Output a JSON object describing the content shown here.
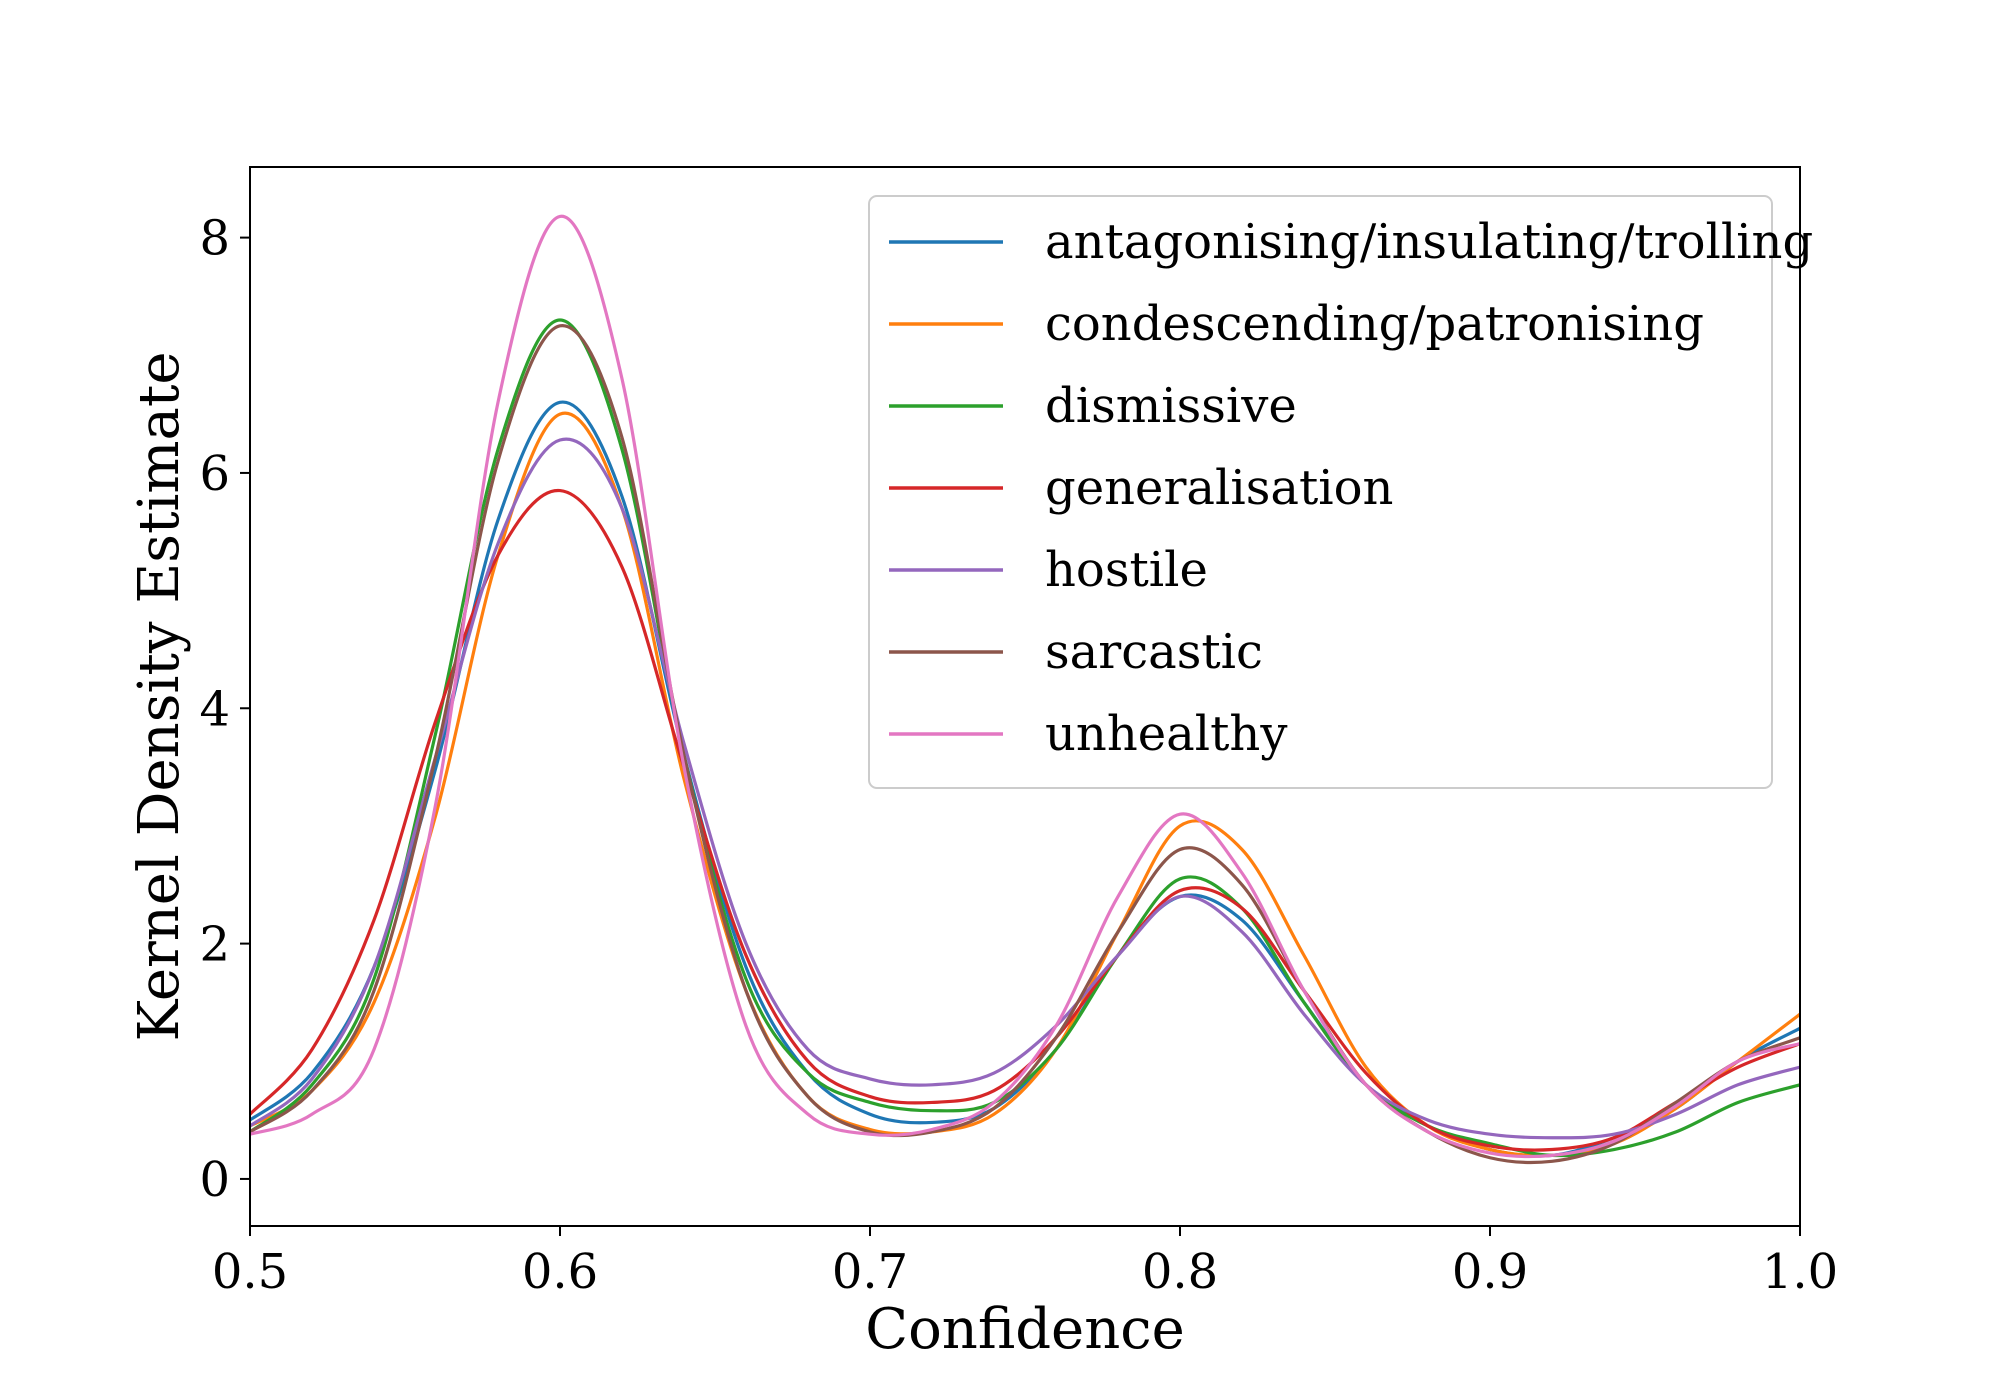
{
  "chart_data": {
    "type": "line",
    "title": "",
    "xlabel": "Confidence",
    "ylabel": "Kernel Density Estimate",
    "xlim": [
      0.5,
      1.0
    ],
    "ylim": [
      -0.4,
      8.6
    ],
    "xticks": [
      0.5,
      0.6,
      0.7,
      0.8,
      0.9,
      1.0
    ],
    "xtick_labels": [
      "0.5",
      "0.6",
      "0.7",
      "0.8",
      "0.9",
      "1.0"
    ],
    "yticks": [
      0,
      2,
      4,
      6,
      8
    ],
    "ytick_labels": [
      "0",
      "2",
      "4",
      "6",
      "8"
    ],
    "grid": false,
    "legend_position": "top-right",
    "x": [
      0.5,
      0.52,
      0.54,
      0.56,
      0.58,
      0.6,
      0.62,
      0.64,
      0.66,
      0.68,
      0.7,
      0.72,
      0.74,
      0.76,
      0.78,
      0.8,
      0.82,
      0.84,
      0.86,
      0.88,
      0.9,
      0.92,
      0.94,
      0.96,
      0.98,
      1.0
    ],
    "series": [
      {
        "name": "antagonising/insulating/trolling",
        "color": "#1f77b4",
        "values": [
          0.5,
          0.9,
          1.8,
          3.5,
          5.6,
          6.6,
          5.8,
          3.6,
          1.8,
          0.9,
          0.55,
          0.48,
          0.6,
          1.1,
          1.9,
          2.4,
          2.2,
          1.5,
          0.8,
          0.45,
          0.25,
          0.2,
          0.35,
          0.6,
          1.0,
          1.28
        ]
      },
      {
        "name": "condescending/patronising",
        "color": "#ff7f0e",
        "values": [
          0.45,
          0.75,
          1.5,
          3.1,
          5.3,
          6.5,
          5.7,
          3.4,
          1.6,
          0.7,
          0.42,
          0.4,
          0.55,
          1.1,
          2.1,
          3.0,
          2.8,
          1.9,
          0.95,
          0.45,
          0.25,
          0.2,
          0.3,
          0.6,
          1.0,
          1.4
        ]
      },
      {
        "name": "dismissive",
        "color": "#2ca02c",
        "values": [
          0.4,
          0.8,
          1.7,
          3.8,
          6.2,
          7.3,
          6.2,
          3.6,
          1.7,
          0.9,
          0.65,
          0.58,
          0.65,
          1.1,
          1.9,
          2.55,
          2.3,
          1.5,
          0.8,
          0.45,
          0.3,
          0.2,
          0.25,
          0.4,
          0.65,
          0.8
        ]
      },
      {
        "name": "generalisation",
        "color": "#d62728",
        "values": [
          0.55,
          1.1,
          2.2,
          3.9,
          5.3,
          5.85,
          5.2,
          3.5,
          1.9,
          1.0,
          0.7,
          0.65,
          0.75,
          1.2,
          1.9,
          2.45,
          2.3,
          1.6,
          0.9,
          0.45,
          0.28,
          0.25,
          0.35,
          0.65,
          0.95,
          1.15
        ]
      },
      {
        "name": "hostile",
        "color": "#9467bd",
        "values": [
          0.45,
          0.85,
          1.8,
          3.6,
          5.4,
          6.28,
          5.7,
          3.7,
          2.0,
          1.1,
          0.85,
          0.8,
          0.9,
          1.3,
          1.9,
          2.4,
          2.1,
          1.4,
          0.8,
          0.5,
          0.38,
          0.35,
          0.38,
          0.55,
          0.8,
          0.95
        ]
      },
      {
        "name": "sarcastic",
        "color": "#8c564b",
        "values": [
          0.4,
          0.75,
          1.6,
          3.6,
          6.1,
          7.25,
          6.3,
          3.6,
          1.6,
          0.7,
          0.4,
          0.4,
          0.6,
          1.2,
          2.1,
          2.8,
          2.5,
          1.6,
          0.8,
          0.4,
          0.18,
          0.15,
          0.3,
          0.65,
          1.0,
          1.2
        ]
      },
      {
        "name": "unhealthy",
        "color": "#e377c2",
        "values": [
          0.38,
          0.55,
          1.1,
          3.2,
          6.6,
          8.18,
          6.8,
          3.5,
          1.3,
          0.55,
          0.38,
          0.42,
          0.65,
          1.3,
          2.4,
          3.1,
          2.6,
          1.6,
          0.8,
          0.4,
          0.22,
          0.2,
          0.32,
          0.62,
          1.0,
          1.15
        ]
      }
    ]
  }
}
